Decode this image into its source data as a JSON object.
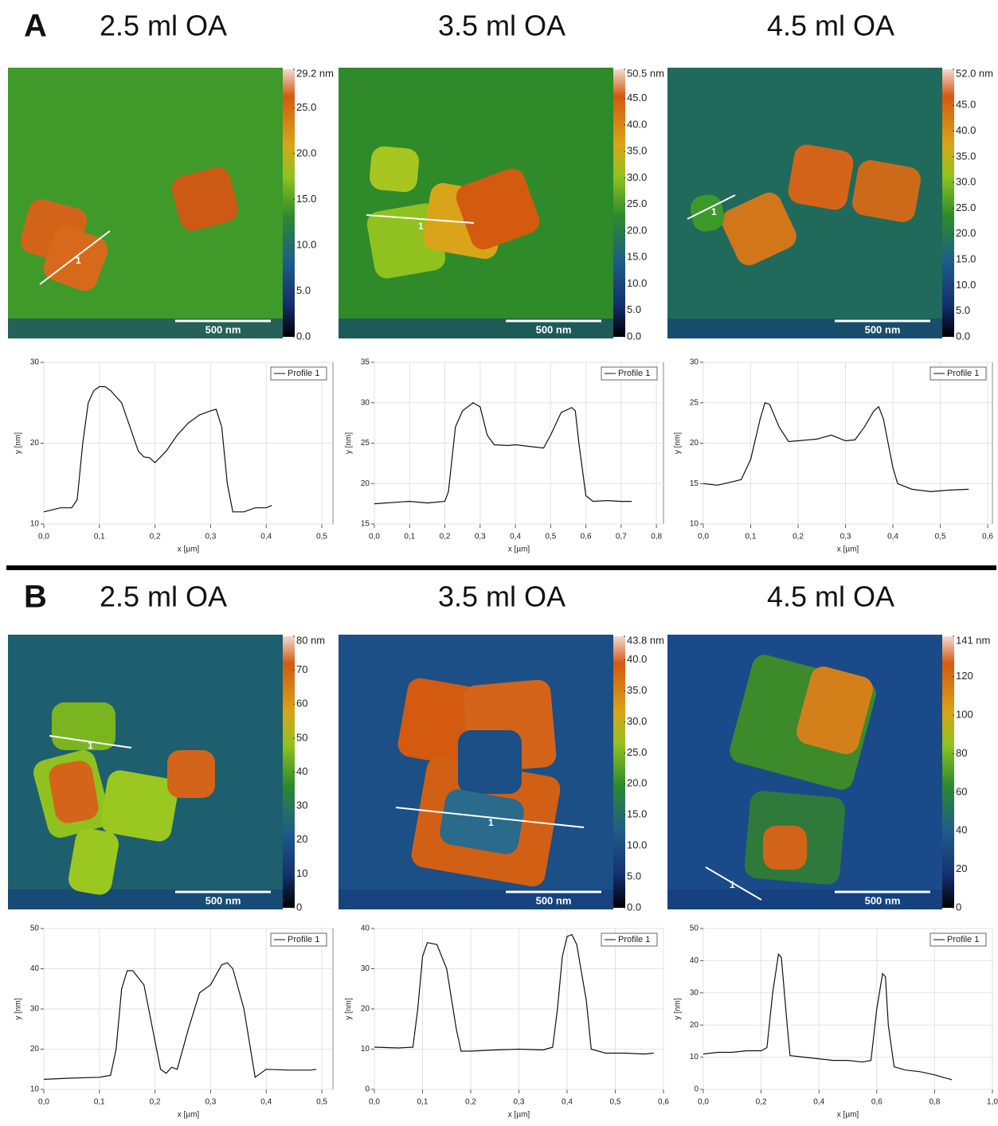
{
  "panels": [
    {
      "label": "A",
      "columns": [
        {
          "title": "2.5 ml OA",
          "scale_bar": "500 nm",
          "profile_label": "1",
          "colorbar": {
            "lim": [
              0,
              29.2
            ],
            "ticks": [
              {
                "value": 29.2,
                "label": "29.2 nm"
              },
              {
                "value": 25,
                "label": "25.0"
              },
              {
                "value": 20,
                "label": "20.0"
              },
              {
                "value": 15,
                "label": "15.0"
              },
              {
                "value": 10,
                "label": "10.0"
              },
              {
                "value": 5,
                "label": "5.0"
              },
              {
                "value": 0,
                "label": "0.0"
              }
            ]
          }
        },
        {
          "title": "3.5 ml OA",
          "scale_bar": "500 nm",
          "profile_label": "1",
          "colorbar": {
            "lim": [
              0,
              50.5
            ],
            "ticks": [
              {
                "value": 50.5,
                "label": "50.5 nm"
              },
              {
                "value": 45,
                "label": "45.0"
              },
              {
                "value": 40,
                "label": "40.0"
              },
              {
                "value": 35,
                "label": "35.0"
              },
              {
                "value": 30,
                "label": "30.0"
              },
              {
                "value": 25,
                "label": "25.0"
              },
              {
                "value": 20,
                "label": "20.0"
              },
              {
                "value": 15,
                "label": "15.0"
              },
              {
                "value": 10,
                "label": "10.0"
              },
              {
                "value": 5,
                "label": "5.0"
              },
              {
                "value": 0,
                "label": "0.0"
              }
            ]
          }
        },
        {
          "title": "4.5 ml OA",
          "scale_bar": "500 nm",
          "profile_label": "1",
          "colorbar": {
            "lim": [
              0,
              52
            ],
            "ticks": [
              {
                "value": 52,
                "label": "52.0 nm"
              },
              {
                "value": 45,
                "label": "45.0"
              },
              {
                "value": 40,
                "label": "40.0"
              },
              {
                "value": 35,
                "label": "35.0"
              },
              {
                "value": 30,
                "label": "30.0"
              },
              {
                "value": 25,
                "label": "25.0"
              },
              {
                "value": 20,
                "label": "20.0"
              },
              {
                "value": 15,
                "label": "15.0"
              },
              {
                "value": 10,
                "label": "10.0"
              },
              {
                "value": 5,
                "label": "5.0"
              },
              {
                "value": 0,
                "label": "0.0"
              }
            ]
          }
        }
      ]
    },
    {
      "label": "B",
      "columns": [
        {
          "title": "2.5 ml OA",
          "scale_bar": "500 nm",
          "profile_label": "1",
          "colorbar": {
            "lim": [
              0,
              80
            ],
            "ticks": [
              {
                "value": 80,
                "label": "80 nm"
              },
              70,
              60,
              50,
              40,
              30,
              20,
              10,
              0
            ]
          }
        },
        {
          "title": "3.5 ml OA",
          "scale_bar": "500 nm",
          "profile_label": "1",
          "colorbar": {
            "lim": [
              0,
              43.8
            ],
            "ticks": [
              {
                "value": 43.8,
                "label": "43.8 nm"
              },
              {
                "value": 40,
                "label": "40.0"
              },
              {
                "value": 35,
                "label": "35.0"
              },
              {
                "value": 30,
                "label": "30.0"
              },
              {
                "value": 25,
                "label": "25.0"
              },
              {
                "value": 20,
                "label": "20.0"
              },
              {
                "value": 15,
                "label": "15.0"
              },
              {
                "value": 10,
                "label": "10.0"
              },
              {
                "value": 5,
                "label": "5.0"
              },
              {
                "value": 0,
                "label": "0.0"
              }
            ]
          }
        },
        {
          "title": "4.5 ml OA",
          "scale_bar": "500 nm",
          "profile_label": "1",
          "colorbar": {
            "lim": [
              0,
              141
            ],
            "ticks": [
              {
                "value": 141,
                "label": "141 nm"
              },
              120,
              100,
              80,
              60,
              40,
              20,
              0
            ]
          }
        }
      ]
    }
  ],
  "chart_data": [
    {
      "type": "line",
      "x_label": "x [µm]",
      "y_label": "y [nm]",
      "grid": true,
      "legend": "upper right",
      "x": [
        0,
        0.03,
        0.05,
        0.06,
        0.07,
        0.08,
        0.09,
        0.1,
        0.11,
        0.12,
        0.14,
        0.16,
        0.17,
        0.18,
        0.19,
        0.2,
        0.22,
        0.24,
        0.26,
        0.28,
        0.3,
        0.31,
        0.32,
        0.33,
        0.34,
        0.36,
        0.38,
        0.4,
        0.41
      ],
      "series": [
        {
          "name": "Profile 1",
          "color": "#111111",
          "values": [
            11.5,
            12,
            12,
            13,
            20,
            25,
            26.5,
            27,
            27,
            26.5,
            25,
            21,
            19,
            18.3,
            18.2,
            17.6,
            19,
            21,
            22.5,
            23.5,
            24,
            24.2,
            22,
            15,
            11.5,
            11.5,
            12,
            12,
            12.3
          ]
        }
      ],
      "xlim": [
        0,
        0.52
      ],
      "ylim": [
        10,
        30
      ],
      "xticks": [
        {
          "value": 0,
          "label": "0,0"
        },
        {
          "value": 0.1,
          "label": "0,1"
        },
        {
          "value": 0.2,
          "label": "0,2"
        },
        {
          "value": 0.3,
          "label": "0,3"
        },
        {
          "value": 0.4,
          "label": "0,4"
        },
        {
          "value": 0.5,
          "label": "0,5"
        }
      ],
      "yticks": [
        10,
        20,
        30
      ]
    },
    {
      "type": "line",
      "x_label": "x [µm]",
      "y_label": "y [nm]",
      "grid": true,
      "legend": "upper right",
      "x": [
        0,
        0.1,
        0.15,
        0.2,
        0.21,
        0.23,
        0.25,
        0.28,
        0.3,
        0.32,
        0.34,
        0.38,
        0.4,
        0.44,
        0.48,
        0.5,
        0.53,
        0.56,
        0.57,
        0.58,
        0.6,
        0.62,
        0.66,
        0.7,
        0.73
      ],
      "series": [
        {
          "name": "Profile 1",
          "color": "#111111",
          "values": [
            17.5,
            17.8,
            17.6,
            17.8,
            19,
            27,
            29,
            30,
            29.5,
            26,
            24.8,
            24.7,
            24.8,
            24.6,
            24.4,
            26,
            28.8,
            29.4,
            29,
            25,
            18.5,
            17.8,
            17.9,
            17.8,
            17.8
          ]
        }
      ],
      "xlim": [
        0,
        0.82
      ],
      "ylim": [
        15,
        35
      ],
      "xticks": [
        {
          "value": 0,
          "label": "0,0"
        },
        {
          "value": 0.1,
          "label": "0,1"
        },
        {
          "value": 0.2,
          "label": "0,2"
        },
        {
          "value": 0.3,
          "label": "0,3"
        },
        {
          "value": 0.4,
          "label": "0,4"
        },
        {
          "value": 0.5,
          "label": "0,5"
        },
        {
          "value": 0.6,
          "label": "0,6"
        },
        {
          "value": 0.7,
          "label": "0,7"
        },
        {
          "value": 0.8,
          "label": "0,8"
        }
      ],
      "yticks": [
        15,
        20,
        25,
        30,
        35
      ]
    },
    {
      "type": "line",
      "x_label": "x [µm]",
      "y_label": "y [nm]",
      "grid": true,
      "legend": "upper right",
      "x": [
        0,
        0.03,
        0.06,
        0.08,
        0.1,
        0.12,
        0.13,
        0.14,
        0.16,
        0.18,
        0.2,
        0.24,
        0.27,
        0.3,
        0.32,
        0.34,
        0.36,
        0.37,
        0.38,
        0.4,
        0.41,
        0.44,
        0.48,
        0.52,
        0.56
      ],
      "series": [
        {
          "name": "Profile 1",
          "color": "#111111",
          "values": [
            15,
            14.8,
            15.2,
            15.5,
            18,
            23,
            25,
            24.8,
            22,
            20.2,
            20.3,
            20.5,
            21,
            20.3,
            20.4,
            22,
            24,
            24.5,
            23,
            17,
            15,
            14.3,
            14,
            14.2,
            14.3
          ]
        }
      ],
      "xlim": [
        0,
        0.61
      ],
      "ylim": [
        10,
        30
      ],
      "xticks": [
        {
          "value": 0,
          "label": "0,0"
        },
        {
          "value": 0.1,
          "label": "0,1"
        },
        {
          "value": 0.2,
          "label": "0,2"
        },
        {
          "value": 0.3,
          "label": "0,3"
        },
        {
          "value": 0.4,
          "label": "0,4"
        },
        {
          "value": 0.5,
          "label": "0,5"
        },
        {
          "value": 0.6,
          "label": "0,6"
        }
      ],
      "yticks": [
        10,
        15,
        20,
        25,
        30
      ]
    },
    {
      "type": "line",
      "x_label": "x [µm]",
      "y_label": "y [nm]",
      "grid": true,
      "legend": "upper right",
      "x": [
        0,
        0.05,
        0.1,
        0.12,
        0.13,
        0.14,
        0.15,
        0.16,
        0.18,
        0.2,
        0.21,
        0.22,
        0.23,
        0.24,
        0.26,
        0.28,
        0.3,
        0.32,
        0.33,
        0.34,
        0.36,
        0.38,
        0.4,
        0.44,
        0.48,
        0.49
      ],
      "series": [
        {
          "name": "Profile 1",
          "color": "#111111",
          "values": [
            12.5,
            12.8,
            13,
            13.5,
            20,
            35,
            39.5,
            39.5,
            36,
            22,
            15,
            14,
            15.5,
            15,
            25,
            34,
            36,
            41,
            41.5,
            40,
            30,
            13,
            15,
            14.8,
            14.8,
            15
          ]
        }
      ],
      "xlim": [
        0,
        0.52
      ],
      "ylim": [
        10,
        50
      ],
      "xticks": [
        {
          "value": 0,
          "label": "0,0"
        },
        {
          "value": 0.1,
          "label": "0,1"
        },
        {
          "value": 0.2,
          "label": "0,2"
        },
        {
          "value": 0.3,
          "label": "0,3"
        },
        {
          "value": 0.4,
          "label": "0,4"
        },
        {
          "value": 0.5,
          "label": "0,5"
        }
      ],
      "yticks": [
        10,
        20,
        30,
        40,
        50
      ]
    },
    {
      "type": "line",
      "x_label": "x [µm]",
      "y_label": "y [nm]",
      "grid": true,
      "legend": "upper right",
      "x": [
        0,
        0.05,
        0.08,
        0.09,
        0.1,
        0.11,
        0.13,
        0.15,
        0.17,
        0.18,
        0.2,
        0.25,
        0.3,
        0.35,
        0.37,
        0.38,
        0.39,
        0.4,
        0.41,
        0.42,
        0.44,
        0.45,
        0.48,
        0.52,
        0.56,
        0.58
      ],
      "series": [
        {
          "name": "Profile 1",
          "color": "#111111",
          "values": [
            10.5,
            10.3,
            10.5,
            20,
            33,
            36.5,
            36,
            30,
            15,
            9.5,
            9.5,
            9.8,
            10,
            9.8,
            10.5,
            20,
            33,
            38,
            38.5,
            36,
            22,
            10,
            9,
            9,
            8.8,
            9
          ]
        }
      ],
      "xlim": [
        0,
        0.6
      ],
      "ylim": [
        0,
        40
      ],
      "xticks": [
        {
          "value": 0,
          "label": "0,0"
        },
        {
          "value": 0.1,
          "label": "0,1"
        },
        {
          "value": 0.2,
          "label": "0,2"
        },
        {
          "value": 0.3,
          "label": "0,3"
        },
        {
          "value": 0.4,
          "label": "0,4"
        },
        {
          "value": 0.5,
          "label": "0,5"
        },
        {
          "value": 0.6,
          "label": "0,6"
        }
      ],
      "yticks": [
        0,
        10,
        20,
        30,
        40
      ]
    },
    {
      "type": "line",
      "x_label": "x [µm]",
      "y_label": "y [nm]",
      "grid": true,
      "legend": "upper right",
      "x": [
        0,
        0.05,
        0.1,
        0.15,
        0.2,
        0.22,
        0.24,
        0.26,
        0.27,
        0.29,
        0.3,
        0.35,
        0.4,
        0.45,
        0.5,
        0.55,
        0.58,
        0.6,
        0.62,
        0.63,
        0.64,
        0.66,
        0.7,
        0.75,
        0.8,
        0.84,
        0.86
      ],
      "series": [
        {
          "name": "Profile 1",
          "color": "#111111",
          "values": [
            11,
            11.5,
            11.5,
            12,
            12,
            13,
            30,
            42,
            41,
            20,
            10.5,
            10,
            9.5,
            9,
            9,
            8.5,
            9,
            25,
            36,
            35,
            20,
            7,
            6,
            5.5,
            4.5,
            3.5,
            3
          ]
        }
      ],
      "xlim": [
        0,
        1
      ],
      "ylim": [
        0,
        50
      ],
      "xticks": [
        {
          "value": 0,
          "label": "0,0"
        },
        {
          "value": 0.2,
          "label": "0,2"
        },
        {
          "value": 0.4,
          "label": "0,4"
        },
        {
          "value": 0.6,
          "label": "0,6"
        },
        {
          "value": 0.8,
          "label": "0,8"
        },
        {
          "value": 1,
          "label": "1,0"
        }
      ],
      "yticks": [
        0,
        10,
        20,
        30,
        40,
        50
      ]
    }
  ]
}
